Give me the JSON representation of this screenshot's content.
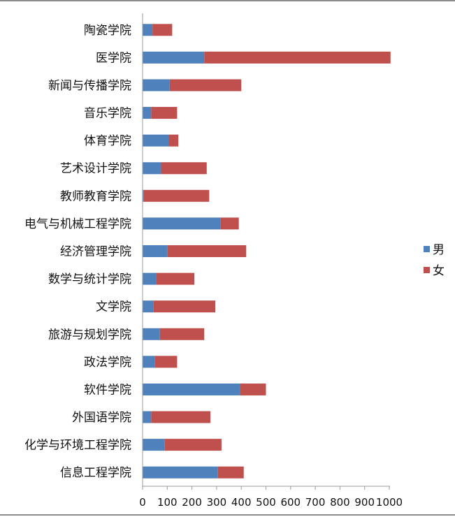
{
  "chart_data": {
    "type": "bar",
    "orientation": "horizontal",
    "stacked": true,
    "title": "",
    "xlabel": "",
    "ylabel": "",
    "xlim": [
      0,
      1000
    ],
    "xticks": [
      0,
      100,
      200,
      300,
      400,
      500,
      600,
      700,
      800,
      900,
      1000
    ],
    "xtick_labels": [
      "0",
      "100",
      "200",
      "300",
      "400",
      "500",
      "600",
      "700",
      "800",
      "900",
      "1000"
    ],
    "grid": false,
    "legend_position": "right",
    "categories": [
      "陶瓷学院",
      "医学院",
      "新闻与传播学院",
      "音乐学院",
      "体育学院",
      "艺术设计学院",
      "教师教育学院",
      "电气与机械工程学院",
      "经济管理学院",
      "数学与统计学院",
      "文学院",
      "旅游与规划学院",
      "政法学院",
      "软件学院",
      "外国语学院",
      "化学与环境工程学院",
      "信息工程学院"
    ],
    "series": [
      {
        "name": "男",
        "color": "#4f81bd",
        "values": [
          40,
          250,
          110,
          35,
          105,
          75,
          5,
          315,
          100,
          55,
          45,
          70,
          50,
          395,
          35,
          90,
          305
        ]
      },
      {
        "name": "女",
        "color": "#c0504d",
        "values": [
          80,
          755,
          290,
          105,
          40,
          185,
          265,
          75,
          320,
          155,
          250,
          180,
          90,
          105,
          240,
          230,
          105
        ]
      }
    ]
  }
}
